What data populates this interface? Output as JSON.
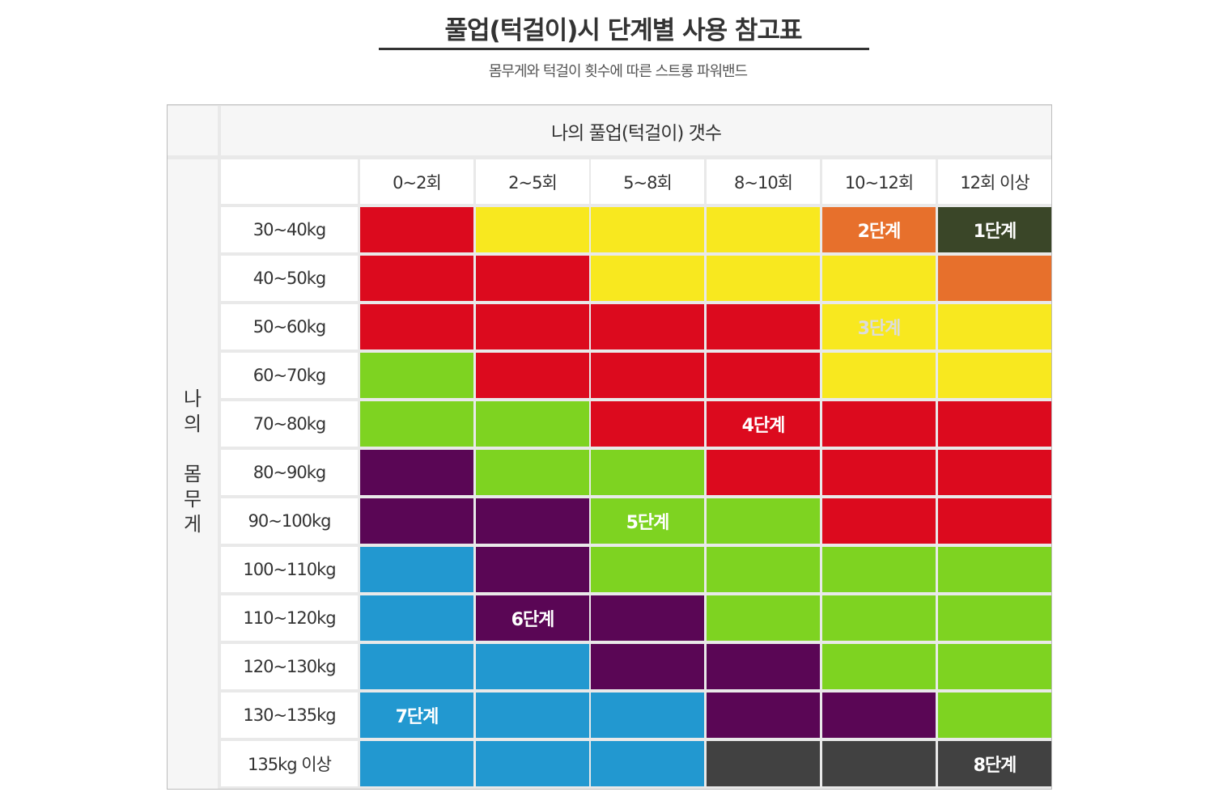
{
  "header": {
    "title": "풀업(턱걸이)시 단계별 사용 참고표",
    "subtitle": "몸무게와 턱걸이 횟수에 따른 스트롱 파워밴드"
  },
  "table": {
    "column_group_label": "나의 풀업(턱걸이) 갯수",
    "row_group_label": [
      "나",
      "의",
      "",
      "몸",
      "무",
      "게"
    ],
    "columns": [
      "0~2회",
      "2~5회",
      "5~8회",
      "8~10회",
      "10~12회",
      "12회 이상"
    ],
    "rows": [
      "30~40kg",
      "40~50kg",
      "50~60kg",
      "60~70kg",
      "70~80kg",
      "80~90kg",
      "90~100kg",
      "100~110kg",
      "110~120kg",
      "120~130kg",
      "130~135kg",
      "135kg 이상"
    ],
    "levels": {
      "1": {
        "label": "1단계",
        "color": "#3a4628",
        "text_color": "#ffffff"
      },
      "2": {
        "label": "2단계",
        "color": "#e7702c",
        "text_color": "#ffffff"
      },
      "3": {
        "label": "3단계",
        "color": "#f8e81f",
        "text_color": "#dcdcdc"
      },
      "4": {
        "label": "4단계",
        "color": "#dc0a1e",
        "text_color": "#ffffff"
      },
      "5": {
        "label": "5단계",
        "color": "#7ed321",
        "text_color": "#ffffff"
      },
      "6": {
        "label": "6단계",
        "color": "#5a0655",
        "text_color": "#ffffff"
      },
      "7": {
        "label": "7단계",
        "color": "#2298d0",
        "text_color": "#ffffff"
      },
      "8": {
        "label": "8단계",
        "color": "#414141",
        "text_color": "#ffffff"
      }
    },
    "grid": [
      [
        4,
        3,
        3,
        3,
        2,
        1
      ],
      [
        4,
        4,
        3,
        3,
        3,
        2
      ],
      [
        4,
        4,
        4,
        4,
        3,
        3
      ],
      [
        5,
        4,
        4,
        4,
        3,
        3
      ],
      [
        5,
        5,
        4,
        4,
        4,
        4
      ],
      [
        6,
        5,
        5,
        4,
        4,
        4
      ],
      [
        6,
        6,
        5,
        5,
        4,
        4
      ],
      [
        7,
        6,
        5,
        5,
        5,
        5
      ],
      [
        7,
        6,
        6,
        5,
        5,
        5
      ],
      [
        7,
        7,
        6,
        6,
        5,
        5
      ],
      [
        7,
        7,
        7,
        6,
        6,
        5
      ],
      [
        7,
        7,
        7,
        8,
        8,
        8
      ]
    ],
    "level_labels": [
      {
        "level": "2",
        "row": 0,
        "col": 4
      },
      {
        "level": "1",
        "row": 0,
        "col": 5
      },
      {
        "level": "3",
        "row": 2,
        "col": 4
      },
      {
        "level": "4",
        "row": 4,
        "col": 3
      },
      {
        "level": "5",
        "row": 6,
        "col": 2
      },
      {
        "level": "6",
        "row": 8,
        "col": 1
      },
      {
        "level": "7",
        "row": 10,
        "col": 0
      },
      {
        "level": "8",
        "row": 11,
        "col": 5
      }
    ]
  }
}
